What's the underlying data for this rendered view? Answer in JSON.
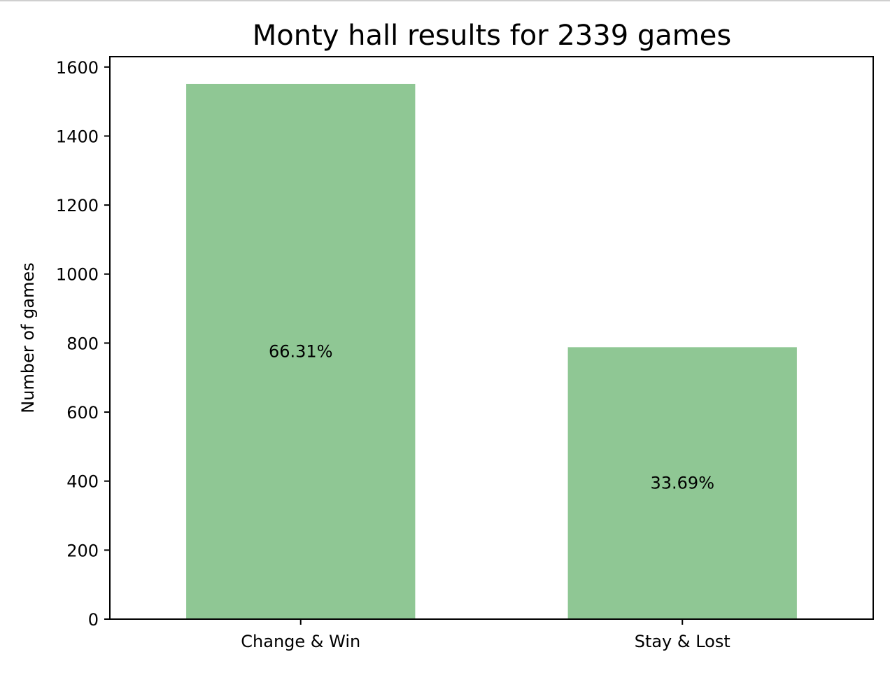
{
  "chart_data": {
    "type": "bar",
    "title": "Monty hall results for 2339 games",
    "xlabel": "",
    "ylabel": "Number of games",
    "categories": [
      "Change & Win",
      "Stay & Lost"
    ],
    "values": [
      1551,
      788
    ],
    "data_labels": [
      "66.31%",
      "33.69%"
    ],
    "ylim": [
      0,
      1630
    ],
    "yticks": [
      0,
      200,
      400,
      600,
      800,
      1000,
      1200,
      1400,
      1600
    ],
    "grid": false,
    "bar_color": "#8fc794"
  }
}
